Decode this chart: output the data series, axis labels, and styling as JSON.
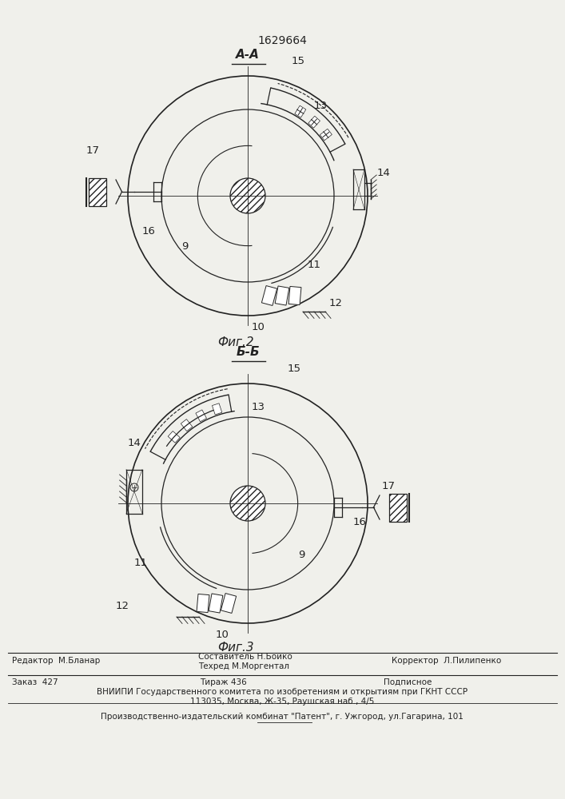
{
  "title_number": "1629664",
  "fig2_label": "А-А",
  "fig2_caption": "Фиг.2",
  "fig3_label": "Б-Б",
  "fig3_caption": "Фиг.3",
  "footer_left": "Редактор  М.Бланар",
  "footer_mid1": "Составитель Н.Бойко",
  "footer_mid2": "Техред М.Моргентал",
  "footer_right": "Корректор  Л.Пилипенко",
  "footer_order": "Заказ  427",
  "footer_tirazh": "Тираж 436",
  "footer_podp": "Подписное",
  "footer_vniip": "ВНИИПИ Государственного комитета по изобретениям и открытиям при ГКНТ СССР",
  "footer_addr": "113035, Москва, Ж-35, Раушская наб., 4/5",
  "footer_patent": "Производственно-издательский комбинат \"Патент\", г. Ужгород, ул.Гагарина, 101",
  "bg_color": "#f0f0eb",
  "lc": "#222222"
}
